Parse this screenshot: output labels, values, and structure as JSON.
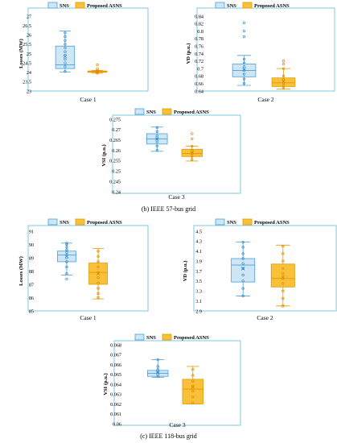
{
  "colors": {
    "frame": "#7ec8e3",
    "sns_fill": "#cfe6f7",
    "sns_stroke": "#4a9fd8",
    "asns_fill": "#f9c13a",
    "asns_stroke": "#e59a00",
    "marker": "#3b8fd0",
    "marker_asns": "#e08a00"
  },
  "captions": {
    "b": "(b) IEEE 57-bus grid",
    "c": "(c) IEEE 118-bus grid"
  },
  "chart_data": [
    {
      "type": "box",
      "panel": "57-bus Case 1",
      "xlabel": "Case 1",
      "ylabel": "Losses (MW)",
      "ylim": [
        23,
        27
      ],
      "yticks": [
        "23",
        "23.5",
        "24",
        "24.5",
        "25",
        "25.5",
        "26",
        "26.5",
        "27"
      ],
      "legend": [
        "SNS",
        "Proposed ASNS"
      ],
      "series": [
        {
          "name": "SNS",
          "min": 24.02,
          "q1": 24.2,
          "median": 24.4,
          "q3": 25.4,
          "max": 26.2,
          "mean": 24.85,
          "points": [
            24.05,
            24.3,
            24.5,
            24.7,
            24.9,
            25.1,
            25.3,
            25.5,
            25.7,
            25.9,
            26.1
          ]
        },
        {
          "name": "Proposed ASNS",
          "min": 23.95,
          "q1": 24.0,
          "median": 24.03,
          "q3": 24.07,
          "max": 24.1,
          "mean": 24.03,
          "points": [
            23.95,
            24.0,
            24.05,
            24.1,
            24.2,
            24.4
          ]
        }
      ]
    },
    {
      "type": "box",
      "panel": "57-bus Case 2",
      "xlabel": "Case 2",
      "ylabel": "VD (p.u.)",
      "ylim": [
        0.64,
        0.84
      ],
      "yticks": [
        "0.64",
        "0.66",
        "0.68",
        "0.7",
        "0.72",
        "0.74",
        "0.76",
        "0.78",
        "0.8",
        "0.82",
        "0.84"
      ],
      "legend": [
        "SNS",
        "Proposed ASNS"
      ],
      "series": [
        {
          "name": "SNS",
          "min": 0.655,
          "q1": 0.678,
          "median": 0.695,
          "q3": 0.712,
          "max": 0.735,
          "mean": 0.698,
          "points": [
            0.66,
            0.672,
            0.685,
            0.695,
            0.705,
            0.715,
            0.725,
            0.785,
            0.8,
            0.822
          ]
        },
        {
          "name": "Proposed ASNS",
          "min": 0.645,
          "q1": 0.652,
          "median": 0.662,
          "q3": 0.675,
          "max": 0.7,
          "mean": 0.666,
          "points": [
            0.648,
            0.655,
            0.662,
            0.67,
            0.68,
            0.7,
            0.712,
            0.72
          ]
        }
      ]
    },
    {
      "type": "box",
      "panel": "57-bus Case 3",
      "xlabel": "Case 3",
      "ylabel": "VSI (p.u.)",
      "ylim": [
        0.24,
        0.275
      ],
      "yticks": [
        "0.24",
        "0.245",
        "0.25",
        "0.255",
        "0.26",
        "0.265",
        "0.27",
        "0.275"
      ],
      "legend": [
        "SNS",
        "Proposed ASNS"
      ],
      "series": [
        {
          "name": "SNS",
          "min": 0.2595,
          "q1": 0.263,
          "median": 0.2655,
          "q3": 0.268,
          "max": 0.2712,
          "mean": 0.2655,
          "points": [
            0.26,
            0.262,
            0.264,
            0.2655,
            0.267,
            0.269,
            0.271
          ]
        },
        {
          "name": "Proposed ASNS",
          "min": 0.2548,
          "q1": 0.257,
          "median": 0.2585,
          "q3": 0.2605,
          "max": 0.262,
          "mean": 0.2588,
          "points": [
            0.2555,
            0.257,
            0.2585,
            0.26,
            0.262,
            0.2655,
            0.268
          ]
        }
      ]
    },
    {
      "type": "box",
      "panel": "118-bus Case 1",
      "xlabel": "Case 1",
      "ylabel": "Losses (MW)",
      "ylim": [
        85,
        91
      ],
      "yticks": [
        "85",
        "86",
        "87",
        "88",
        "89",
        "90",
        "91"
      ],
      "legend": [
        "SNS",
        "Proposed ASNS"
      ],
      "series": [
        {
          "name": "SNS",
          "min": 87.7,
          "q1": 88.7,
          "median": 89.2,
          "q3": 89.5,
          "max": 90.1,
          "mean": 89.1,
          "points": [
            87.4,
            87.8,
            88.3,
            88.7,
            89.0,
            89.2,
            89.4,
            89.6,
            89.8,
            90.0,
            90.1
          ]
        },
        {
          "name": "Proposed ASNS",
          "min": 85.9,
          "q1": 87.0,
          "median": 87.9,
          "q3": 88.6,
          "max": 89.7,
          "mean": 87.8,
          "points": [
            86.0,
            86.3,
            86.7,
            87.1,
            87.5,
            87.9,
            88.3,
            88.7,
            89.1,
            89.5
          ]
        }
      ]
    },
    {
      "type": "box",
      "panel": "118-bus Case 2",
      "xlabel": "Case 2",
      "ylabel": "VD (p.u.)",
      "ylim": [
        2.9,
        4.5
      ],
      "yticks": [
        "2.9",
        "3.1",
        "3.3",
        "3.5",
        "3.7",
        "3.9",
        "4.1",
        "4.3",
        "4.5"
      ],
      "legend": [
        "SNS",
        "Proposed ASNS"
      ],
      "series": [
        {
          "name": "SNS",
          "min": 3.2,
          "q1": 3.48,
          "median": 3.82,
          "q3": 3.95,
          "max": 4.28,
          "mean": 3.75,
          "points": [
            3.2,
            3.35,
            3.5,
            3.62,
            3.75,
            3.85,
            3.95,
            4.05,
            4.18,
            4.28
          ]
        },
        {
          "name": "Proposed ASNS",
          "min": 3.0,
          "q1": 3.38,
          "median": 3.55,
          "q3": 3.84,
          "max": 4.22,
          "mean": 3.58,
          "points": [
            3.0,
            3.15,
            3.3,
            3.45,
            3.55,
            3.65,
            3.75,
            3.9,
            4.05,
            4.2
          ]
        }
      ]
    },
    {
      "type": "box",
      "panel": "118-bus Case 3",
      "xlabel": "Case 3",
      "ylabel": "VSI (p.u.)",
      "ylim": [
        0.06,
        0.068
      ],
      "yticks": [
        "0.06",
        "0.061",
        "0.062",
        "0.063",
        "0.064",
        "0.065",
        "0.066",
        "0.067",
        "0.068"
      ],
      "legend": [
        "SNS",
        "Proposed ASNS"
      ],
      "series": [
        {
          "name": "SNS",
          "min": 0.0647,
          "q1": 0.0648,
          "median": 0.0651,
          "q3": 0.0654,
          "max": 0.0665,
          "mean": 0.0652,
          "points": [
            0.0648,
            0.065,
            0.0652,
            0.0655,
            0.0658,
            0.0665
          ]
        },
        {
          "name": "Proposed ASNS",
          "min": 0.062,
          "q1": 0.062,
          "median": 0.0635,
          "q3": 0.0645,
          "max": 0.0658,
          "mean": 0.0637,
          "points": [
            0.0621,
            0.0627,
            0.0633,
            0.0638,
            0.0643,
            0.0649,
            0.0655
          ]
        }
      ]
    }
  ]
}
